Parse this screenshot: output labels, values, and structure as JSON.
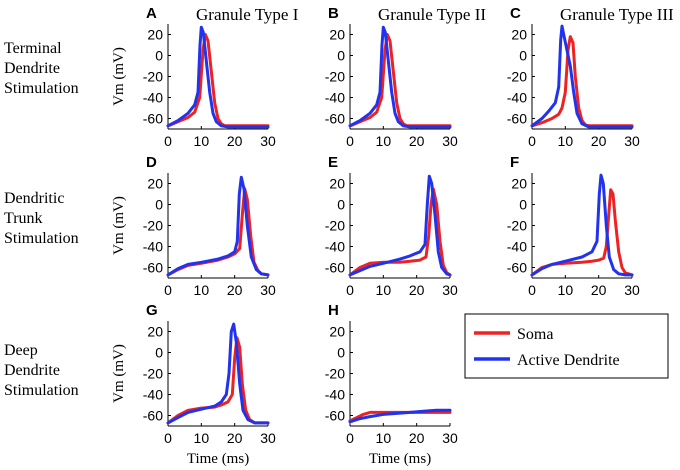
{
  "figure": {
    "column_titles": [
      "Granule Type I",
      "Granule Type II",
      "Granule Type III"
    ],
    "row_labels": [
      [
        "Terminal",
        "Dendrite",
        "Stimulation"
      ],
      [
        "Dendritic",
        "Trunk",
        "Stimulation"
      ],
      [
        "Deep",
        "Dendrite",
        "Stimulation"
      ]
    ],
    "colors": {
      "soma": "#ee2222",
      "dendrite": "#2233ee",
      "axis": "#000000"
    }
  },
  "chart_data": [
    {
      "panel": "A",
      "type": "line",
      "title": "Granule Type I",
      "xlabel": "",
      "ylabel": "Vm (mV)",
      "xlim": [
        0,
        30
      ],
      "ylim": [
        -70,
        30
      ],
      "xticks": [
        "0",
        "10",
        "20",
        "30"
      ],
      "yticks": [
        "20",
        "0",
        "-20",
        "-40",
        "-60"
      ],
      "series": [
        {
          "name": "Soma",
          "x": [
            0,
            3,
            6,
            8,
            9.5,
            10.5,
            11.2,
            12,
            13,
            14,
            15,
            16,
            17,
            20,
            25,
            30
          ],
          "y": [
            -67,
            -63,
            -59,
            -54,
            -40,
            5,
            20,
            14,
            -15,
            -45,
            -60,
            -65,
            -67,
            -67,
            -67,
            -67
          ]
        },
        {
          "name": "Active Dendrite",
          "x": [
            0,
            3,
            6,
            8,
            9,
            9.6,
            10,
            10.6,
            11.5,
            12.5,
            13.5,
            14.5,
            16,
            18,
            25,
            30
          ],
          "y": [
            -67,
            -62,
            -55,
            -47,
            -35,
            10,
            27,
            22,
            -5,
            -35,
            -55,
            -63,
            -67,
            -68,
            -68,
            -68
          ]
        }
      ]
    },
    {
      "panel": "B",
      "type": "line",
      "title": "Granule Type II",
      "xlabel": "",
      "ylabel": "",
      "xlim": [
        0,
        30
      ],
      "ylim": [
        -70,
        30
      ],
      "xticks": [
        "0",
        "10",
        "20",
        "30"
      ],
      "yticks": [
        "20",
        "0",
        "-20",
        "-40",
        "-60"
      ],
      "series": [
        {
          "name": "Soma",
          "x": [
            0,
            3,
            6,
            8,
            9.5,
            10.5,
            11.2,
            12,
            13,
            14,
            15,
            16,
            17,
            20,
            25,
            30
          ],
          "y": [
            -67,
            -63,
            -59,
            -54,
            -40,
            5,
            20,
            14,
            -15,
            -45,
            -60,
            -65,
            -67,
            -67,
            -67,
            -67
          ]
        },
        {
          "name": "Active Dendrite",
          "x": [
            0,
            3,
            6,
            8,
            9,
            9.6,
            10,
            10.6,
            11.5,
            12.5,
            13.5,
            14.5,
            16,
            18,
            25,
            30
          ],
          "y": [
            -67,
            -62,
            -55,
            -47,
            -35,
            10,
            27,
            22,
            -5,
            -35,
            -55,
            -63,
            -67,
            -68,
            -68,
            -68
          ]
        }
      ]
    },
    {
      "panel": "C",
      "type": "line",
      "title": "Granule Type III",
      "xlabel": "",
      "ylabel": "",
      "xlim": [
        0,
        30
      ],
      "ylim": [
        -70,
        30
      ],
      "xticks": [
        "0",
        "10",
        "20",
        "30"
      ],
      "yticks": [
        "20",
        "0",
        "-20",
        "-40",
        "-60"
      ],
      "series": [
        {
          "name": "Soma",
          "x": [
            0,
            3,
            6,
            8,
            9,
            10,
            10.8,
            11.5,
            12.3,
            13,
            14,
            15,
            16,
            17,
            20,
            30
          ],
          "y": [
            -67,
            -64,
            -60,
            -56,
            -50,
            -35,
            5,
            18,
            12,
            -20,
            -50,
            -62,
            -66,
            -67,
            -67,
            -67
          ]
        },
        {
          "name": "Active Dendrite",
          "x": [
            0,
            3,
            5,
            7,
            8,
            8.6,
            9,
            9.5,
            10.5,
            11.5,
            12.5,
            13.5,
            15,
            17,
            25,
            30
          ],
          "y": [
            -67,
            -60,
            -53,
            -45,
            -30,
            15,
            28,
            20,
            5,
            -10,
            -35,
            -55,
            -65,
            -68,
            -68,
            -68
          ]
        }
      ]
    },
    {
      "panel": "D",
      "type": "line",
      "title": "",
      "xlabel": "",
      "ylabel": "Vm (mV)",
      "xlim": [
        0,
        30
      ],
      "ylim": [
        -70,
        30
      ],
      "xticks": [
        "0",
        "10",
        "20",
        "30"
      ],
      "yticks": [
        "20",
        "0",
        "-20",
        "-40",
        "-60"
      ],
      "series": [
        {
          "name": "Soma",
          "x": [
            0,
            3,
            6,
            10,
            15,
            18,
            20,
            21.5,
            22.3,
            23,
            23.8,
            24.8,
            25.8,
            27,
            28,
            30
          ],
          "y": [
            -67,
            -62,
            -58,
            -56,
            -53,
            -50,
            -47,
            -42,
            -10,
            15,
            5,
            -30,
            -55,
            -63,
            -66,
            -67
          ]
        },
        {
          "name": "Active Dendrite",
          "x": [
            0,
            3,
            6,
            10,
            15,
            18,
            20,
            20.8,
            21.4,
            22,
            22.8,
            23.8,
            25,
            26.5,
            28,
            30
          ],
          "y": [
            -67,
            -61,
            -57,
            -55,
            -52,
            -49,
            -45,
            -35,
            10,
            26,
            15,
            -20,
            -50,
            -62,
            -66,
            -67
          ]
        }
      ]
    },
    {
      "panel": "E",
      "type": "line",
      "title": "",
      "xlabel": "",
      "ylabel": "",
      "xlim": [
        0,
        30
      ],
      "ylim": [
        -70,
        30
      ],
      "xticks": [
        "0",
        "10",
        "20",
        "30"
      ],
      "yticks": [
        "20",
        "0",
        "-20",
        "-40",
        "-60"
      ],
      "series": [
        {
          "name": "Soma",
          "x": [
            0,
            3,
            6,
            10,
            15,
            18,
            21,
            22.8,
            23.6,
            24.3,
            25,
            26,
            27,
            28,
            29,
            30
          ],
          "y": [
            -67,
            -60,
            -56,
            -55,
            -55,
            -54,
            -53,
            -50,
            -30,
            0,
            15,
            0,
            -35,
            -58,
            -65,
            -67
          ]
        },
        {
          "name": "Active Dendrite",
          "x": [
            0,
            3,
            6,
            10,
            15,
            18,
            21,
            22.5,
            23.2,
            23.8,
            24.5,
            25.5,
            26.5,
            27.5,
            29,
            30
          ],
          "y": [
            -67,
            -63,
            -59,
            -56,
            -52,
            -49,
            -45,
            -38,
            0,
            27,
            20,
            -10,
            -45,
            -60,
            -66,
            -67
          ]
        }
      ]
    },
    {
      "panel": "F",
      "type": "line",
      "title": "",
      "xlabel": "",
      "ylabel": "",
      "xlim": [
        0,
        30
      ],
      "ylim": [
        -70,
        30
      ],
      "xticks": [
        "0",
        "10",
        "20",
        "30"
      ],
      "yticks": [
        "20",
        "0",
        "-20",
        "-40",
        "-60"
      ],
      "series": [
        {
          "name": "Soma",
          "x": [
            0,
            3,
            6,
            10,
            15,
            18,
            20,
            21.5,
            22.3,
            23,
            23.6,
            24.3,
            25,
            26,
            27,
            28,
            30
          ],
          "y": [
            -67,
            -60,
            -57,
            -56,
            -55,
            -54,
            -53,
            -51,
            -40,
            -10,
            14,
            10,
            -15,
            -45,
            -60,
            -65,
            -67
          ]
        },
        {
          "name": "Active Dendrite",
          "x": [
            0,
            3,
            6,
            10,
            15,
            18,
            19.5,
            20.2,
            20.7,
            21.4,
            22.3,
            23.2,
            24.5,
            26,
            28,
            30
          ],
          "y": [
            -67,
            -61,
            -57,
            -54,
            -50,
            -45,
            -35,
            10,
            28,
            20,
            -20,
            -50,
            -62,
            -66,
            -67,
            -67
          ]
        }
      ]
    },
    {
      "panel": "G",
      "type": "line",
      "title": "",
      "xlabel": "Time (ms)",
      "ylabel": "Vm (mV)",
      "xlim": [
        0,
        30
      ],
      "ylim": [
        -70,
        30
      ],
      "xticks": [
        "0",
        "10",
        "20",
        "30"
      ],
      "yticks": [
        "20",
        "0",
        "-20",
        "-40",
        "-60"
      ],
      "series": [
        {
          "name": "Soma",
          "x": [
            0,
            3,
            6,
            10,
            14,
            16,
            18,
            19.3,
            20,
            20.7,
            21.5,
            22.3,
            23.3,
            24.5,
            26,
            30
          ],
          "y": [
            -67,
            -60,
            -55,
            -53,
            -52,
            -50,
            -47,
            -40,
            -5,
            14,
            5,
            -30,
            -55,
            -64,
            -67,
            -67
          ]
        },
        {
          "name": "Active Dendrite",
          "x": [
            0,
            3,
            6,
            10,
            14,
            16,
            17.5,
            18.3,
            19,
            19.7,
            20.5,
            21.5,
            22.5,
            24,
            26,
            30
          ],
          "y": [
            -67,
            -62,
            -57,
            -54,
            -51,
            -47,
            -40,
            -20,
            20,
            27,
            10,
            -30,
            -55,
            -64,
            -67,
            -67
          ]
        }
      ]
    },
    {
      "panel": "H",
      "type": "line",
      "title": "",
      "xlabel": "Time (ms)",
      "ylabel": "",
      "xlim": [
        0,
        30
      ],
      "ylim": [
        -70,
        30
      ],
      "xticks": [
        "0",
        "10",
        "20",
        "30"
      ],
      "yticks": [
        "20",
        "0",
        "-20",
        "-40",
        "-60"
      ],
      "series": [
        {
          "name": "Soma",
          "x": [
            0,
            2,
            4,
            6,
            8,
            12,
            16,
            20,
            25,
            30
          ],
          "y": [
            -65,
            -62,
            -59,
            -57,
            -57,
            -57,
            -57,
            -57,
            -57,
            -57
          ]
        },
        {
          "name": "Active Dendrite",
          "x": [
            0,
            3,
            6,
            10,
            14,
            18,
            22,
            26,
            30
          ],
          "y": [
            -66,
            -63,
            -61,
            -59,
            -58,
            -57,
            -56,
            -55,
            -55
          ]
        }
      ]
    }
  ],
  "legend": {
    "items": [
      {
        "label": "Soma",
        "color": "#ee2222"
      },
      {
        "label": "Active Dendrite",
        "color": "#2233ee"
      }
    ]
  }
}
